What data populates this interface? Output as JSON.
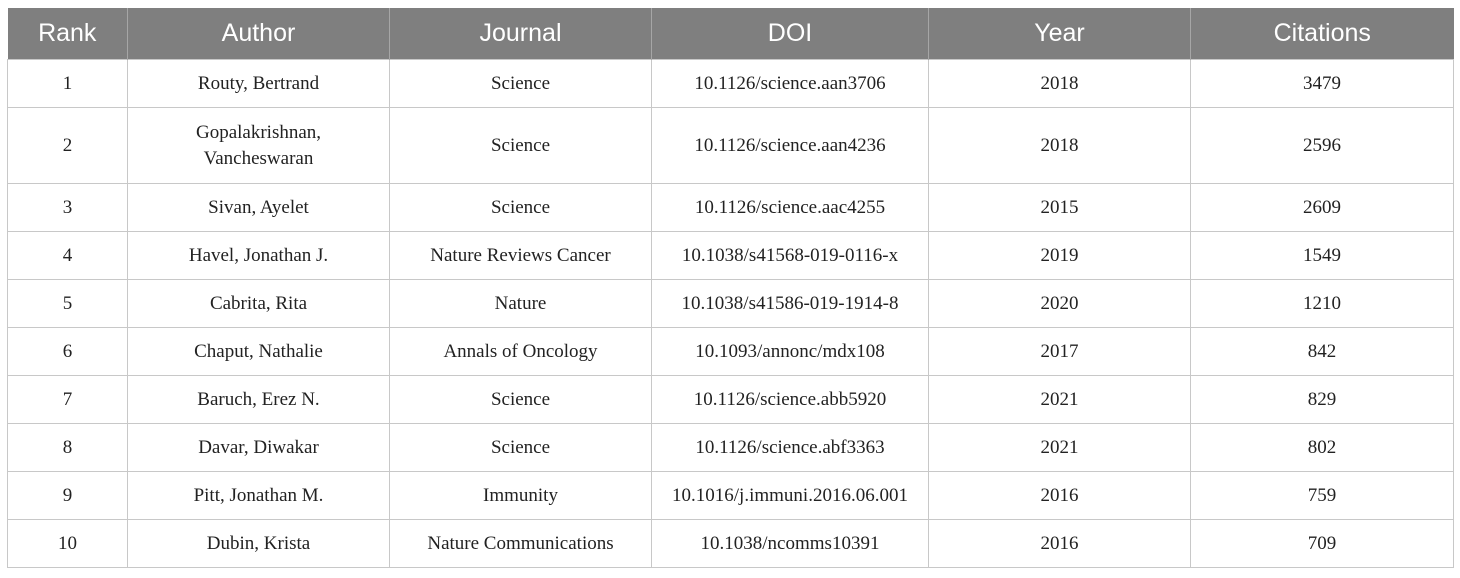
{
  "table": {
    "headers": [
      "Rank",
      "Author",
      "Journal",
      "DOI",
      "Year",
      "Citations"
    ],
    "rows": [
      {
        "rank": "1",
        "author": "Routy, Bertrand",
        "journal": "Science",
        "doi": "10.1126/science.aan3706",
        "year": "2018",
        "citations": "3479"
      },
      {
        "rank": "2",
        "author_line1": "Gopalakrishnan,",
        "author_line2": "Vancheswaran",
        "journal": "Science",
        "doi": "10.1126/science.aan4236",
        "year": "2018",
        "citations": "2596"
      },
      {
        "rank": "3",
        "author": "Sivan, Ayelet",
        "journal": "Science",
        "doi": "10.1126/science.aac4255",
        "year": "2015",
        "citations": "2609"
      },
      {
        "rank": "4",
        "author": "Havel, Jonathan J.",
        "journal": "Nature Reviews Cancer",
        "doi": "10.1038/s41568-019-0116-x",
        "year": "2019",
        "citations": "1549"
      },
      {
        "rank": "5",
        "author": "Cabrita, Rita",
        "journal": "Nature",
        "doi": "10.1038/s41586-019-1914-8",
        "year": "2020",
        "citations": "1210"
      },
      {
        "rank": "6",
        "author": "Chaput, Nathalie",
        "journal": "Annals of Oncology",
        "doi": "10.1093/annonc/mdx108",
        "year": "2017",
        "citations": "842"
      },
      {
        "rank": "7",
        "author": "Baruch, Erez N.",
        "journal": "Science",
        "doi": "10.1126/science.abb5920",
        "year": "2021",
        "citations": "829"
      },
      {
        "rank": "8",
        "author": "Davar, Diwakar",
        "journal": "Science",
        "doi": "10.1126/science.abf3363",
        "year": "2021",
        "citations": "802"
      },
      {
        "rank": "9",
        "author": "Pitt, Jonathan M.",
        "journal": "Immunity",
        "doi": "10.1016/j.immuni.2016.06.001",
        "year": "2016",
        "citations": "759"
      },
      {
        "rank": "10",
        "author": "Dubin, Krista",
        "journal": "Nature Communications",
        "doi": "10.1038/ncomms10391",
        "year": "2016",
        "citations": "709"
      }
    ]
  },
  "colors": {
    "header_bg": "#7f7f7f",
    "header_text": "#ffffff",
    "grid": "#c8c8c8"
  }
}
